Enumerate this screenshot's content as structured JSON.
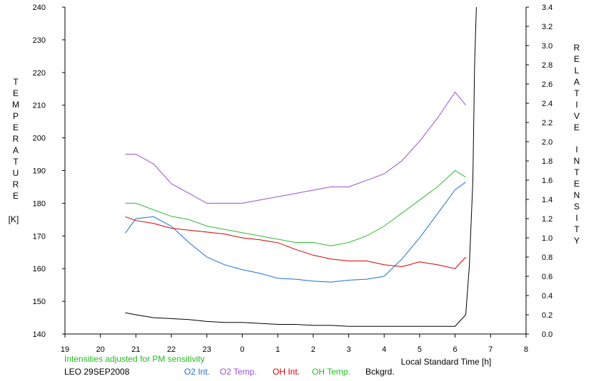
{
  "chart_data": {
    "type": "line",
    "left_axis": {
      "label_letters": [
        "T",
        "E",
        "M",
        "P",
        "E",
        "R",
        "A",
        "T",
        "U",
        "R",
        "E"
      ],
      "unit": "[K]",
      "ylim": [
        140,
        240
      ],
      "ticks": [
        "240",
        "230",
        "220",
        "210",
        "200",
        "190",
        "180",
        "170",
        "160",
        "150",
        "140"
      ]
    },
    "right_axis": {
      "label_letters": [
        "R",
        "E",
        "L",
        "A",
        "T",
        "I",
        "V",
        "E"
      ],
      "label_letters2": [
        "I",
        "N",
        "T",
        "E",
        "N",
        "S",
        "I",
        "T",
        "Y"
      ],
      "ylim": [
        0.0,
        3.4
      ],
      "ticks": [
        "3.4",
        "3.2",
        "3.0",
        "2.8",
        "2.6",
        "2.4",
        "2.2",
        "2.0",
        "1.8",
        "1.6",
        "1.4",
        "1.2",
        "1.0",
        "0.8",
        "0.6",
        "0.4",
        "0.2",
        "0.0"
      ]
    },
    "x_axis": {
      "label": "Local Standard Time [h]",
      "ticks": [
        "19",
        "20",
        "21",
        "22",
        "23",
        "0",
        "1",
        "2",
        "3",
        "4",
        "5",
        "6",
        "7",
        "8"
      ],
      "xlim": [
        19,
        32
      ]
    },
    "note": "Intensities adjusted for PM sensitivity",
    "station": "LEO 29SEP2008",
    "legend": [
      {
        "name": "O2 Int.",
        "color": "#1a6fd6"
      },
      {
        "name": "O2 Temp.",
        "color": "#9b4fd6"
      },
      {
        "name": "OH Int.",
        "color": "#d40000"
      },
      {
        "name": "OH Temp.",
        "color": "#33bb33"
      },
      {
        "name": "Bckgrd.",
        "color": "#000000"
      }
    ],
    "series": [
      {
        "name": "O2 Temp.",
        "axis": "left",
        "x": [
          20.7,
          21.0,
          21.5,
          22.0,
          22.5,
          23.0,
          23.5,
          24.0,
          24.5,
          25.0,
          25.5,
          26.0,
          26.5,
          27.0,
          27.5,
          28.0,
          28.5,
          29.0,
          29.5,
          30.0,
          30.3
        ],
        "y": [
          195,
          195,
          192,
          186,
          183,
          180,
          180,
          180,
          181,
          182,
          183,
          184,
          185,
          185,
          187,
          189,
          193,
          199,
          206,
          214,
          210
        ]
      },
      {
        "name": "OH Temp.",
        "axis": "left",
        "x": [
          20.7,
          21.0,
          21.5,
          22.0,
          22.5,
          23.0,
          23.5,
          24.0,
          24.5,
          25.0,
          25.5,
          26.0,
          26.5,
          27.0,
          27.5,
          28.0,
          28.5,
          29.0,
          29.5,
          30.0,
          30.3
        ],
        "y": [
          180,
          180,
          178,
          176,
          175,
          173,
          172,
          171,
          170,
          169,
          168,
          168,
          167,
          168,
          170,
          173,
          177,
          181,
          185,
          190,
          188
        ]
      },
      {
        "name": "O2 Int.",
        "axis": "right",
        "x": [
          20.7,
          21.0,
          21.5,
          22.0,
          22.5,
          23.0,
          23.5,
          24.0,
          24.5,
          25.0,
          25.5,
          26.0,
          26.5,
          27.0,
          27.5,
          28.0,
          28.5,
          29.0,
          29.5,
          30.0,
          30.3
        ],
        "y": [
          1.05,
          1.2,
          1.22,
          1.12,
          0.95,
          0.8,
          0.72,
          0.67,
          0.63,
          0.58,
          0.57,
          0.55,
          0.54,
          0.56,
          0.57,
          0.6,
          0.78,
          1.0,
          1.25,
          1.5,
          1.58
        ]
      },
      {
        "name": "OH Int.",
        "axis": "right",
        "x": [
          20.7,
          21.0,
          21.5,
          22.0,
          22.5,
          23.0,
          23.5,
          24.0,
          24.5,
          25.0,
          25.5,
          26.0,
          26.5,
          27.0,
          27.5,
          28.0,
          28.5,
          29.0,
          29.5,
          30.0,
          30.3
        ],
        "y": [
          1.22,
          1.18,
          1.15,
          1.1,
          1.08,
          1.06,
          1.04,
          1.0,
          0.98,
          0.95,
          0.88,
          0.82,
          0.78,
          0.76,
          0.76,
          0.72,
          0.7,
          0.75,
          0.72,
          0.68,
          0.8
        ]
      },
      {
        "name": "Bckgrd.",
        "axis": "right",
        "x": [
          20.7,
          21.0,
          21.5,
          22.0,
          22.5,
          23.0,
          23.5,
          24.0,
          24.5,
          25.0,
          25.5,
          26.0,
          26.5,
          27.0,
          27.5,
          28.0,
          28.5,
          29.0,
          29.5,
          30.0,
          30.3,
          30.4,
          30.5,
          30.55,
          30.6
        ],
        "y": [
          0.22,
          0.2,
          0.17,
          0.16,
          0.15,
          0.13,
          0.12,
          0.12,
          0.11,
          0.1,
          0.1,
          0.09,
          0.09,
          0.08,
          0.08,
          0.08,
          0.08,
          0.08,
          0.08,
          0.08,
          0.2,
          0.7,
          1.6,
          2.8,
          3.4
        ]
      }
    ]
  }
}
